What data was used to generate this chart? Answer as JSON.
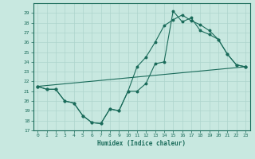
{
  "title": "",
  "xlabel": "Humidex (Indice chaleur)",
  "ylabel": "",
  "xlim": [
    -0.5,
    23.5
  ],
  "ylim": [
    17,
    30
  ],
  "yticks": [
    17,
    18,
    19,
    20,
    21,
    22,
    23,
    24,
    25,
    26,
    27,
    28,
    29
  ],
  "xticks": [
    0,
    1,
    2,
    3,
    4,
    5,
    6,
    7,
    8,
    9,
    10,
    11,
    12,
    13,
    14,
    15,
    16,
    17,
    18,
    19,
    20,
    21,
    22,
    23
  ],
  "bg_color": "#c8e8e0",
  "grid_color": "#aed4cc",
  "line_color": "#1a6b5a",
  "line1_x": [
    0,
    1,
    2,
    3,
    4,
    5,
    6,
    7,
    8,
    9,
    10,
    11,
    12,
    13,
    14,
    15,
    16,
    17,
    18,
    19,
    20,
    21,
    22,
    23
  ],
  "line1_y": [
    21.5,
    21.2,
    21.2,
    20.0,
    19.8,
    18.5,
    17.8,
    17.7,
    19.2,
    19.0,
    21.0,
    21.0,
    21.8,
    23.8,
    24.0,
    29.2,
    28.1,
    28.5,
    27.2,
    26.8,
    26.3,
    24.8,
    23.7,
    23.5
  ],
  "line2_x": [
    0,
    1,
    2,
    3,
    4,
    5,
    6,
    7,
    8,
    9,
    10,
    11,
    12,
    13,
    14,
    15,
    16,
    17,
    18,
    19,
    20,
    21,
    22,
    23
  ],
  "line2_y": [
    21.5,
    21.2,
    21.2,
    20.0,
    19.8,
    18.5,
    17.8,
    17.7,
    19.2,
    19.0,
    21.0,
    23.5,
    24.5,
    26.0,
    27.7,
    28.3,
    28.8,
    28.2,
    27.8,
    27.2,
    26.3,
    24.8,
    23.7,
    23.5
  ],
  "line3_x": [
    0,
    23
  ],
  "line3_y": [
    21.5,
    23.5
  ]
}
